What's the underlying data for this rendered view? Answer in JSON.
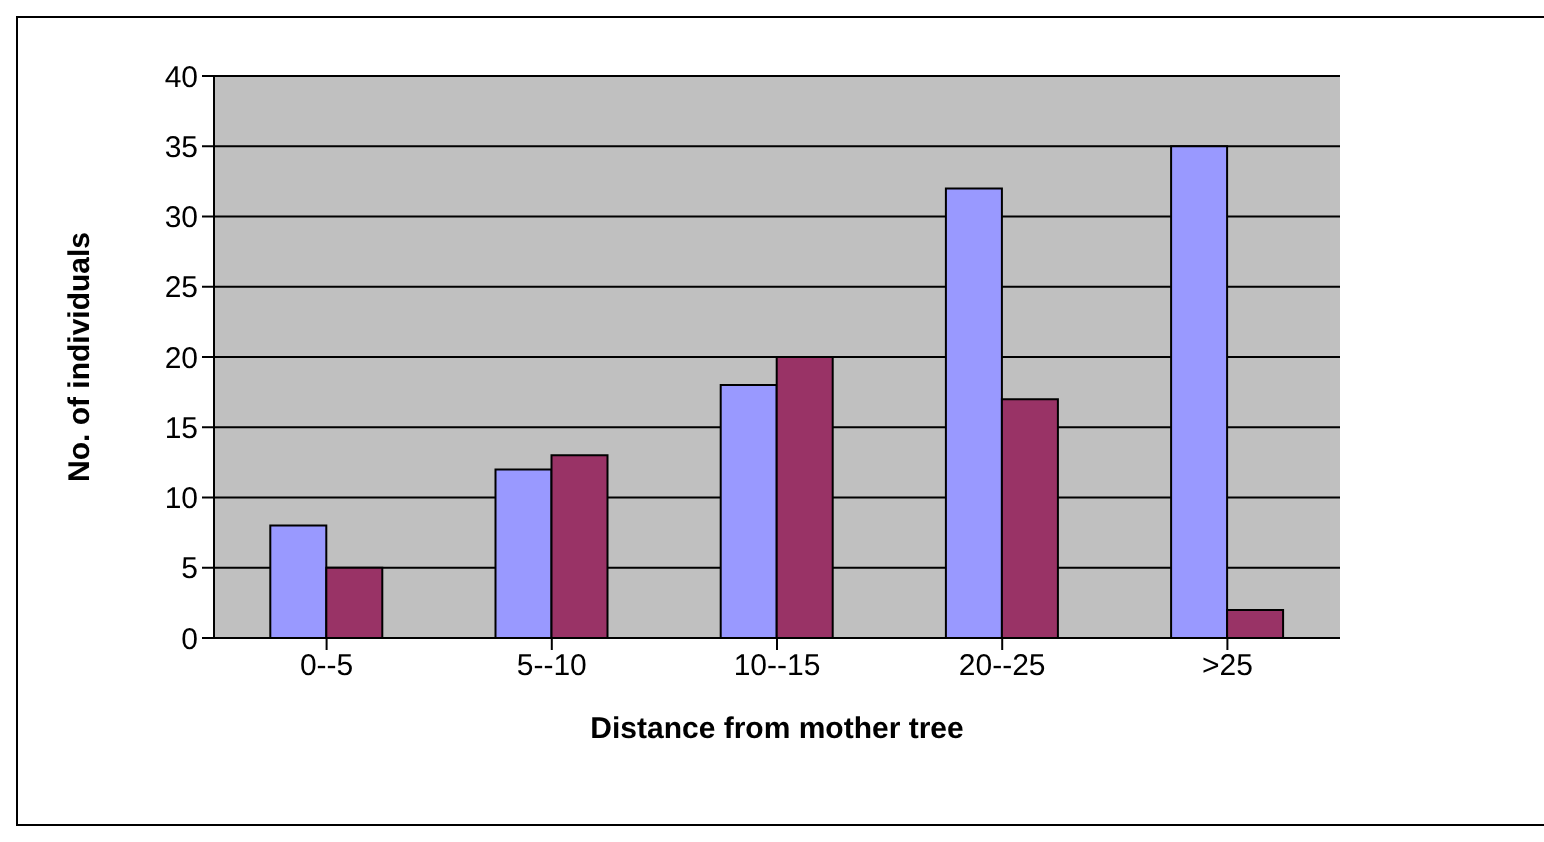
{
  "chart_data": {
    "type": "bar",
    "xlabel": "Distance from mother tree",
    "ylabel": "No. of individuals",
    "categories": [
      "0--5",
      "5--10",
      "10--15",
      "20--25",
      ">25"
    ],
    "series": [
      {
        "color": "#9999ff",
        "values": [
          8,
          12,
          18,
          32,
          35
        ]
      },
      {
        "color": "#993366",
        "values": [
          5,
          13,
          20,
          17,
          2
        ]
      }
    ],
    "ylim": [
      0,
      40
    ],
    "yticks": [
      0,
      5,
      10,
      15,
      20,
      25,
      30,
      35,
      40
    ],
    "grid": "y",
    "legend": false
  }
}
